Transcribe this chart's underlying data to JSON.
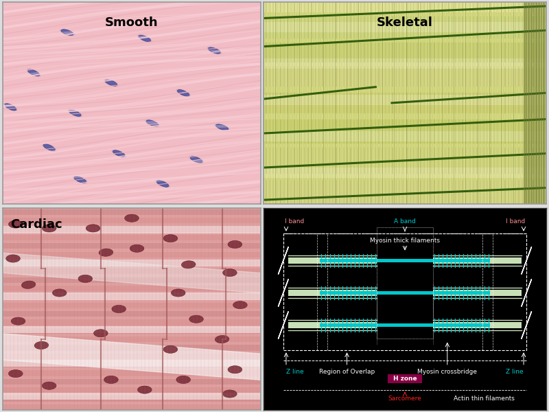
{
  "smooth_label": "Smooth",
  "skeletal_label": "Skeletal",
  "cardiac_label": "Cardiac",
  "smooth_bg_color": "#f5c0c8",
  "skeletal_bg_color": "#d8d898",
  "cardiac_bg_color": "#e8a8a8",
  "diagram_bg": "#000000",
  "actin_color": "#c8e8c0",
  "myosin_color": "#00cccc",
  "z_line_color": "#ffffff",
  "label_cyan": "#00cccc",
  "label_red": "#ff2222",
  "label_white": "#ffffff",
  "label_pink": "#ff9999",
  "h_zone_bg": "#880044",
  "nucleus_color_smooth": "#6668a8",
  "nucleus_color_cardiac": "#8b3045",
  "smooth_fiber_color": "#e8a8b0",
  "smooth_fiber_light": "#f8d0d8",
  "skeletal_fiber_bg": "#d4d888",
  "skeletal_fiber_dark": "#a8b848",
  "skeletal_green_line": "#2a6010",
  "cardiac_fiber_color": "#d88888",
  "cardiac_light_band": "#f0c8c8",
  "cardiac_white_band": "#f8e8e8"
}
